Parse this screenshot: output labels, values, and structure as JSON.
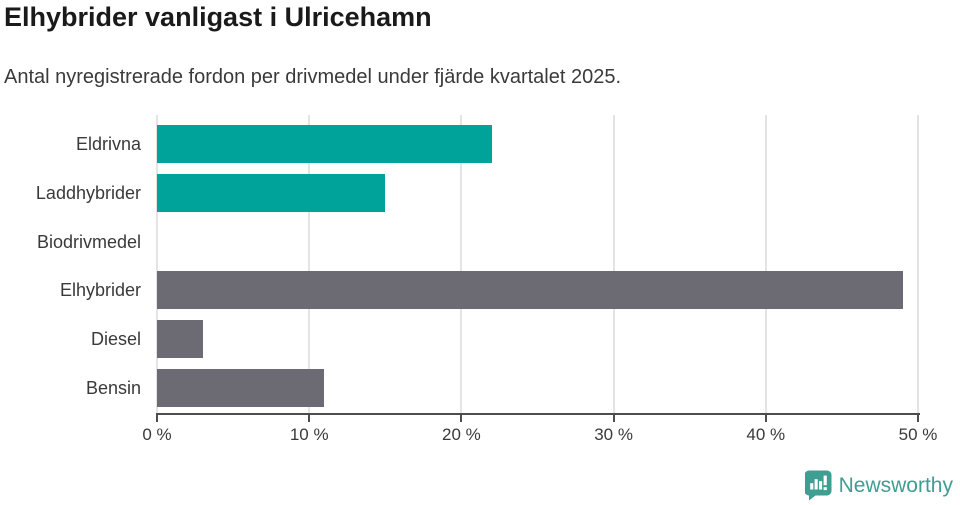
{
  "header": {
    "title": "Elhybrider vanligast i Ulricehamn",
    "subtitle": "Antal nyregistrerade fordon per drivmedel under fjärde kvartalet 2025."
  },
  "chart_data": {
    "type": "bar",
    "orientation": "horizontal",
    "title": "Elhybrider vanligast i Ulricehamn",
    "subtitle": "Antal nyregistrerade fordon per drivmedel under fjärde kvartalet 2025.",
    "categories": [
      "Eldrivna",
      "Laddhybrider",
      "Biodrivmedel",
      "Elhybrider",
      "Diesel",
      "Bensin"
    ],
    "values": [
      22,
      15,
      0,
      49,
      3,
      11
    ],
    "unit": "%",
    "bar_colors": [
      "#00a399",
      "#00a399",
      "#00a399",
      "#6c6b73",
      "#6c6b73",
      "#6c6b73"
    ],
    "xlim": [
      0,
      50
    ],
    "x_ticks": [
      0,
      10,
      20,
      30,
      40,
      50
    ],
    "x_tick_labels": [
      "0 %",
      "10 %",
      "20 %",
      "30 %",
      "40 %",
      "50 %"
    ],
    "grid": "vertical",
    "legend": "none"
  },
  "colors": {
    "accent_teal": "#00a399",
    "neutral_gray": "#6c6b73",
    "axis": "#4d4d4d",
    "gridline": "#e4e4e4",
    "title_text": "#1a1a1a",
    "body_text": "#3a3a3a",
    "brand_teal": "#3f9e92"
  },
  "footer": {
    "brand": "Newsworthy",
    "logo_icon": "speech-bubble-with-bar-chart-and-exclamation"
  }
}
